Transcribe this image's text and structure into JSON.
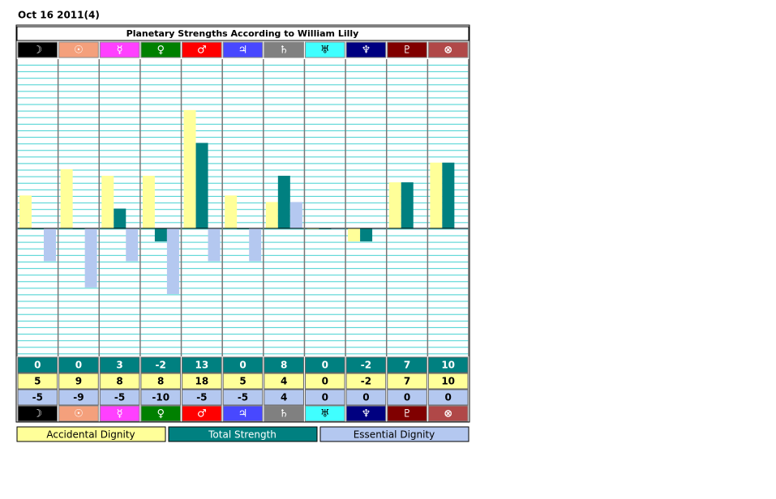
{
  "chart_data": {
    "type": "bar",
    "date": "Oct 16 2011(4)",
    "title": "Planetary Strengths According to William Lilly",
    "categories": [
      "☽",
      "☉",
      "☿",
      "♀",
      "♂",
      "♃",
      "♄",
      "♅",
      "♆",
      "♇",
      "⊗"
    ],
    "category_colors": [
      "#000000",
      "#f4a07c",
      "#ff40ff",
      "#008000",
      "#ff0000",
      "#4848ff",
      "#808080",
      "#40ffff",
      "#000080",
      "#800000",
      "#b04848"
    ],
    "series": [
      {
        "name": "Accidental Dignity",
        "color": "#ffff99",
        "values": [
          5,
          9,
          8,
          8,
          18,
          5,
          4,
          0,
          -2,
          7,
          10
        ]
      },
      {
        "name": "Total Strength",
        "color": "#008080",
        "values": [
          0,
          0,
          3,
          -2,
          13,
          0,
          8,
          0,
          -2,
          7,
          10
        ]
      },
      {
        "name": "Essential Dignity",
        "color": "#b4c8f0",
        "values": [
          -5,
          -9,
          -5,
          -10,
          -5,
          -5,
          4,
          0,
          0,
          0,
          0
        ]
      }
    ],
    "ylim": [
      -19.5,
      25.75
    ]
  }
}
